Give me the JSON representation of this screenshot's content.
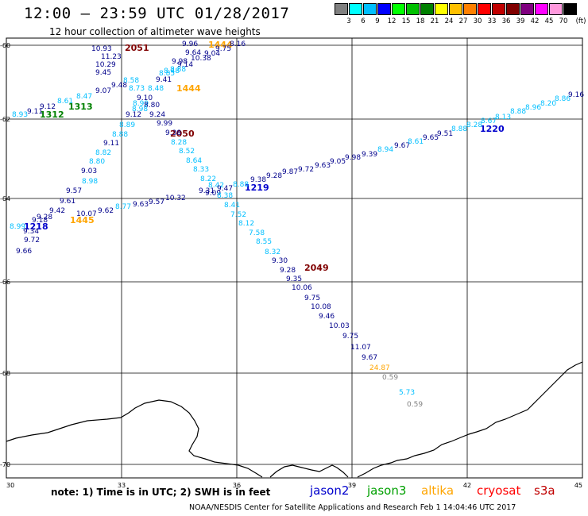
{
  "header": {
    "title": "12:00 – 23:59 UTC 01/28/2017",
    "subtitle": "12 hour collection of altimeter wave heights"
  },
  "legend": {
    "unit": "(ft)",
    "colors": [
      "#808080",
      "#00ffff",
      "#00bfff",
      "#0000ff",
      "#00ff00",
      "#00c000",
      "#008000",
      "#ffff00",
      "#ffc000",
      "#ff8000",
      "#ff0000",
      "#c00000",
      "#800000",
      "#800080",
      "#ff00ff",
      "#ff99dd",
      "#000000"
    ],
    "labels": [
      "3",
      "6",
      "9",
      "12",
      "15",
      "18",
      "21",
      "24",
      "27",
      "30",
      "33",
      "36",
      "39",
      "42",
      "45",
      "70"
    ]
  },
  "axes": {
    "lon_ticks": [
      "30",
      "33",
      "36",
      "39",
      "42",
      "45"
    ],
    "lat_ticks": [
      "-60",
      "-62",
      "-64",
      "-66",
      "-68",
      "-70"
    ]
  },
  "passes": [
    {
      "label": "2051",
      "color": "#800000"
    },
    {
      "label": "1444",
      "color": "#ffa500"
    },
    {
      "label": "1444",
      "color": "#ffa500"
    },
    {
      "label": "1313",
      "color": "#008000"
    },
    {
      "label": "1312",
      "color": "#008000"
    },
    {
      "label": "2050",
      "color": "#800000"
    },
    {
      "label": "1220",
      "color": "#0000cd"
    },
    {
      "label": "1219",
      "color": "#0000cd"
    },
    {
      "label": "1218",
      "color": "#0000cd"
    },
    {
      "label": "1445",
      "color": "#ffa500"
    },
    {
      "label": "2049",
      "color": "#800000"
    }
  ],
  "points": [
    {
      "t": "10.93",
      "c": "#00008b"
    },
    {
      "t": "11.23",
      "c": "#00008b"
    },
    {
      "t": "10.29",
      "c": "#00008b"
    },
    {
      "t": "9.45",
      "c": "#00008b"
    },
    {
      "t": "9.96",
      "c": "#00008b"
    },
    {
      "t": "9.04",
      "c": "#00008b"
    },
    {
      "t": "9.75",
      "c": "#00008b"
    },
    {
      "t": "8.16",
      "c": "#00008b"
    },
    {
      "t": "9.64",
      "c": "#00008b"
    },
    {
      "t": "10.38",
      "c": "#00008b"
    },
    {
      "t": "9.14",
      "c": "#00008b"
    },
    {
      "t": "8.48",
      "c": "#00bfff"
    },
    {
      "t": "9.98",
      "c": "#00008b"
    },
    {
      "t": "8.85",
      "c": "#00bfff"
    },
    {
      "t": "8.88",
      "c": "#00bfff"
    },
    {
      "t": "9.41",
      "c": "#00008b"
    },
    {
      "t": "8.58",
      "c": "#00bfff"
    },
    {
      "t": "8.73",
      "c": "#00bfff"
    },
    {
      "t": "8.48",
      "c": "#00bfff"
    },
    {
      "t": "9.48",
      "c": "#00008b"
    },
    {
      "t": "9.07",
      "c": "#00008b"
    },
    {
      "t": "8.47",
      "c": "#00bfff"
    },
    {
      "t": "8.61",
      "c": "#00bfff"
    },
    {
      "t": "9.12",
      "c": "#00008b"
    },
    {
      "t": "9.11",
      "c": "#00008b"
    },
    {
      "t": "8.93",
      "c": "#00bfff"
    },
    {
      "t": "9.10",
      "c": "#00008b"
    },
    {
      "t": "8.99",
      "c": "#00bfff"
    },
    {
      "t": "8.80",
      "c": "#00008b"
    },
    {
      "t": "8.98",
      "c": "#00bfff"
    },
    {
      "t": "9.12",
      "c": "#00008b"
    },
    {
      "t": "9.24",
      "c": "#00008b"
    },
    {
      "t": "8.89",
      "c": "#00bfff"
    },
    {
      "t": "9.99",
      "c": "#00008b"
    },
    {
      "t": "8.88",
      "c": "#00bfff"
    },
    {
      "t": "9.38",
      "c": "#00008b"
    },
    {
      "t": "9.11",
      "c": "#00008b"
    },
    {
      "t": "8.28",
      "c": "#00bfff"
    },
    {
      "t": "8.82",
      "c": "#00bfff"
    },
    {
      "t": "8.52",
      "c": "#00bfff"
    },
    {
      "t": "8.80",
      "c": "#00bfff"
    },
    {
      "t": "8.64",
      "c": "#00bfff"
    },
    {
      "t": "9.03",
      "c": "#00008b"
    },
    {
      "t": "8.33",
      "c": "#00bfff"
    },
    {
      "t": "8.98",
      "c": "#00bfff"
    },
    {
      "t": "8.22",
      "c": "#00bfff"
    },
    {
      "t": "9.57",
      "c": "#00008b"
    },
    {
      "t": "8.42",
      "c": "#00bfff"
    },
    {
      "t": "9.61",
      "c": "#00008b"
    },
    {
      "t": "9.31",
      "c": "#00008b"
    },
    {
      "t": "9.47",
      "c": "#00008b"
    },
    {
      "t": "8.88",
      "c": "#00bfff"
    },
    {
      "t": "9.38",
      "c": "#00008b"
    },
    {
      "t": "9.28",
      "c": "#00008b"
    },
    {
      "t": "9.87",
      "c": "#00008b"
    },
    {
      "t": "9.72",
      "c": "#00008b"
    },
    {
      "t": "9.63",
      "c": "#00008b"
    },
    {
      "t": "9.05",
      "c": "#00008b"
    },
    {
      "t": "9.98",
      "c": "#00008b"
    },
    {
      "t": "9.39",
      "c": "#00008b"
    },
    {
      "t": "8.94",
      "c": "#00bfff"
    },
    {
      "t": "9.67",
      "c": "#00008b"
    },
    {
      "t": "8.61",
      "c": "#00bfff"
    },
    {
      "t": "9.65",
      "c": "#00008b"
    },
    {
      "t": "9.51",
      "c": "#00008b"
    },
    {
      "t": "8.88",
      "c": "#00bfff"
    },
    {
      "t": "8.28",
      "c": "#00bfff"
    },
    {
      "t": "8.67",
      "c": "#00bfff"
    },
    {
      "t": "8.13",
      "c": "#00bfff"
    },
    {
      "t": "8.88",
      "c": "#00bfff"
    },
    {
      "t": "8.96",
      "c": "#00bfff"
    },
    {
      "t": "8.20",
      "c": "#00bfff"
    },
    {
      "t": "8.86",
      "c": "#00bfff"
    },
    {
      "t": "9.16",
      "c": "#00008b"
    },
    {
      "t": "9.09",
      "c": "#00008b"
    },
    {
      "t": "10.32",
      "c": "#00008b"
    },
    {
      "t": "9.57",
      "c": "#00008b"
    },
    {
      "t": "9.63",
      "c": "#00008b"
    },
    {
      "t": "8.77",
      "c": "#00bfff"
    },
    {
      "t": "9.62",
      "c": "#00008b"
    },
    {
      "t": "10.07",
      "c": "#00008b"
    },
    {
      "t": "9.42",
      "c": "#00008b"
    },
    {
      "t": "9.18",
      "c": "#00008b"
    },
    {
      "t": "9.28",
      "c": "#00008b"
    },
    {
      "t": "8.99",
      "c": "#00bfff"
    },
    {
      "t": "9.34",
      "c": "#00008b"
    },
    {
      "t": "9.72",
      "c": "#00008b"
    },
    {
      "t": "9.66",
      "c": "#00008b"
    },
    {
      "t": "8.38",
      "c": "#00bfff"
    },
    {
      "t": "8.41",
      "c": "#00bfff"
    },
    {
      "t": "7.52",
      "c": "#00bfff"
    },
    {
      "t": "8.12",
      "c": "#00bfff"
    },
    {
      "t": "7.58",
      "c": "#00bfff"
    },
    {
      "t": "8.55",
      "c": "#00bfff"
    },
    {
      "t": "8.32",
      "c": "#00bfff"
    },
    {
      "t": "9.30",
      "c": "#00008b"
    },
    {
      "t": "9.28",
      "c": "#00008b"
    },
    {
      "t": "9.35",
      "c": "#00008b"
    },
    {
      "t": "10.06",
      "c": "#00008b"
    },
    {
      "t": "9.75",
      "c": "#00008b"
    },
    {
      "t": "10.08",
      "c": "#00008b"
    },
    {
      "t": "9.46",
      "c": "#00008b"
    },
    {
      "t": "10.03",
      "c": "#00008b"
    },
    {
      "t": "9.75",
      "c": "#00008b"
    },
    {
      "t": "11.07",
      "c": "#00008b"
    },
    {
      "t": "9.67",
      "c": "#00008b"
    },
    {
      "t": "24.87",
      "c": "#ffa500"
    },
    {
      "t": "0.59",
      "c": "#808080"
    },
    {
      "t": "5.73",
      "c": "#00bfff"
    },
    {
      "t": "0.59",
      "c": "#808080"
    }
  ],
  "note": "note: 1) Time is in UTC; 2) SWH is in feet",
  "satellites": [
    {
      "name": "jason2",
      "color": "#0000cd"
    },
    {
      "name": "jason3",
      "color": "#00a000"
    },
    {
      "name": "altika",
      "color": "#ffa500"
    },
    {
      "name": "cryosat",
      "color": "#ff0000"
    },
    {
      "name": "s3a",
      "color": "#c00000"
    }
  ],
  "credit": "NOAA/NESDIS Center for Satellite Applications and Research    Feb  1 14:04:46 UTC 2017"
}
